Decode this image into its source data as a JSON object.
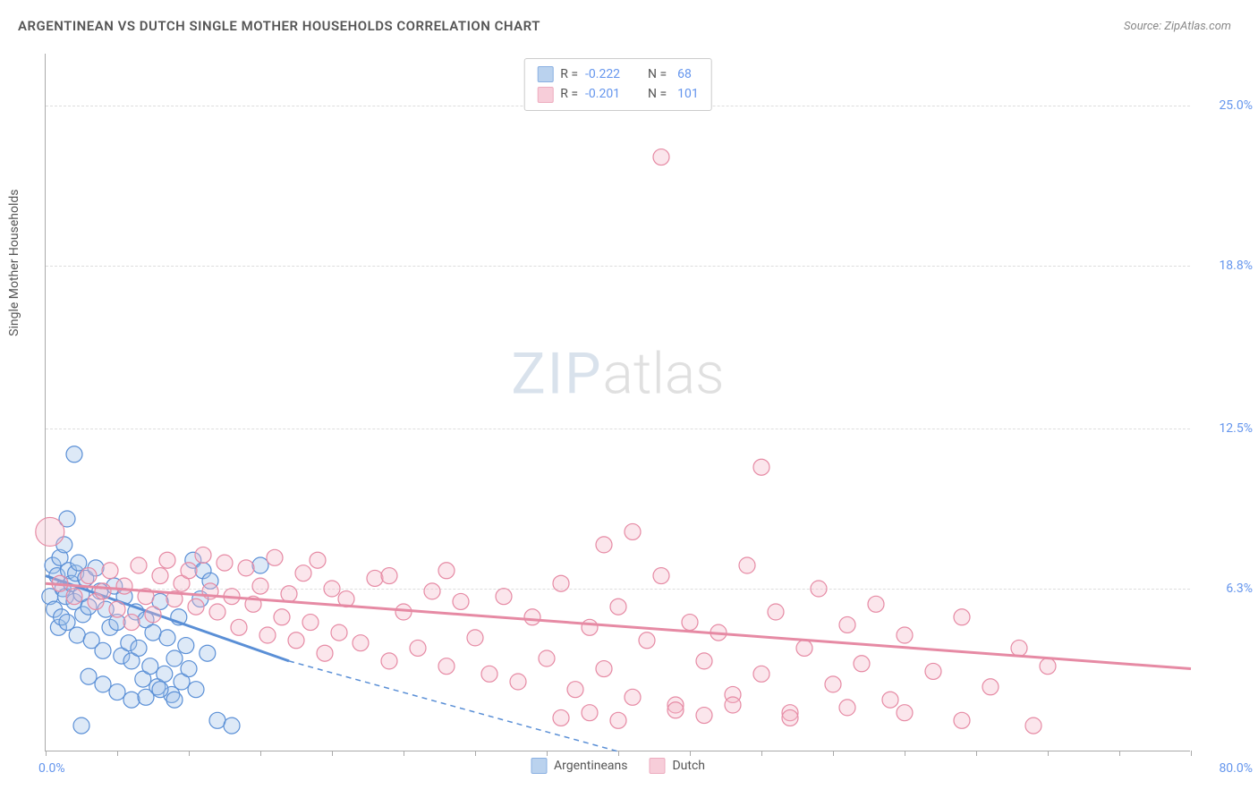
{
  "title": "ARGENTINEAN VS DUTCH SINGLE MOTHER HOUSEHOLDS CORRELATION CHART",
  "source": "Source: ZipAtlas.com",
  "watermark": {
    "part1": "ZIP",
    "part2": "atlas"
  },
  "y_axis_title": "Single Mother Households",
  "chart": {
    "type": "scatter",
    "background_color": "#ffffff",
    "grid_color": "#dddddd",
    "axis_color": "#aaaaaa",
    "xlim": [
      0,
      80
    ],
    "ylim": [
      0,
      27
    ],
    "x_origin_label": "0.0%",
    "x_max_label": "80.0%",
    "y_ticks": [
      {
        "value": 6.3,
        "label": "6.3%"
      },
      {
        "value": 12.5,
        "label": "12.5%"
      },
      {
        "value": 18.8,
        "label": "18.8%"
      },
      {
        "value": 25.0,
        "label": "25.0%"
      }
    ],
    "x_tick_step": 5,
    "marker_radius": 9,
    "marker_radius_large": 16,
    "fill_opacity": 0.35,
    "series": [
      {
        "key": "argentineans",
        "label": "Argentineans",
        "color_border": "#5a8fd6",
        "color_fill": "#9dc0e8",
        "r_value": "-0.222",
        "n_value": "68",
        "trend_solid": {
          "x1": 0,
          "y1": 6.8,
          "x2": 17,
          "y2": 3.5
        },
        "trend_dashed": {
          "x1": 17,
          "y1": 3.5,
          "x2": 40,
          "y2": 0
        },
        "trend_width": 3,
        "points": [
          [
            0.3,
            6.0
          ],
          [
            0.5,
            7.2
          ],
          [
            0.6,
            5.5
          ],
          [
            0.8,
            6.8
          ],
          [
            0.9,
            4.8
          ],
          [
            1.0,
            7.5
          ],
          [
            1.1,
            5.2
          ],
          [
            1.2,
            6.3
          ],
          [
            1.3,
            8.0
          ],
          [
            1.4,
            6.0
          ],
          [
            1.5,
            5.0
          ],
          [
            1.6,
            7.0
          ],
          [
            1.8,
            6.5
          ],
          [
            2.0,
            5.8
          ],
          [
            2.1,
            6.9
          ],
          [
            2.2,
            4.5
          ],
          [
            2.3,
            7.3
          ],
          [
            2.5,
            6.1
          ],
          [
            2.6,
            5.3
          ],
          [
            2.8,
            6.7
          ],
          [
            3.0,
            5.6
          ],
          [
            3.2,
            4.3
          ],
          [
            3.5,
            7.1
          ],
          [
            3.8,
            6.2
          ],
          [
            4.0,
            3.9
          ],
          [
            4.2,
            5.5
          ],
          [
            4.5,
            4.8
          ],
          [
            4.8,
            6.4
          ],
          [
            5.0,
            5.0
          ],
          [
            5.3,
            3.7
          ],
          [
            5.5,
            6.0
          ],
          [
            5.8,
            4.2
          ],
          [
            6.0,
            3.5
          ],
          [
            6.3,
            5.4
          ],
          [
            6.5,
            4.0
          ],
          [
            6.8,
            2.8
          ],
          [
            7.0,
            5.1
          ],
          [
            7.3,
            3.3
          ],
          [
            7.5,
            4.6
          ],
          [
            7.8,
            2.5
          ],
          [
            8.0,
            5.8
          ],
          [
            8.3,
            3.0
          ],
          [
            8.5,
            4.4
          ],
          [
            8.8,
            2.2
          ],
          [
            9.0,
            3.6
          ],
          [
            9.3,
            5.2
          ],
          [
            9.5,
            2.7
          ],
          [
            9.8,
            4.1
          ],
          [
            10.0,
            3.2
          ],
          [
            10.3,
            7.4
          ],
          [
            10.5,
            2.4
          ],
          [
            10.8,
            5.9
          ],
          [
            11.0,
            7.0
          ],
          [
            11.3,
            3.8
          ],
          [
            11.5,
            6.6
          ],
          [
            12.0,
            1.2
          ],
          [
            2.0,
            11.5
          ],
          [
            1.5,
            9.0
          ],
          [
            3.0,
            2.9
          ],
          [
            4.0,
            2.6
          ],
          [
            5.0,
            2.3
          ],
          [
            6.0,
            2.0
          ],
          [
            7.0,
            2.1
          ],
          [
            8.0,
            2.4
          ],
          [
            9.0,
            2.0
          ],
          [
            2.5,
            1.0
          ],
          [
            13.0,
            1.0
          ],
          [
            15.0,
            7.2
          ]
        ]
      },
      {
        "key": "dutch",
        "label": "Dutch",
        "color_border": "#e68aa4",
        "color_fill": "#f4b8c9",
        "r_value": "-0.201",
        "n_value": "101",
        "trend_solid": {
          "x1": 0,
          "y1": 6.5,
          "x2": 80,
          "y2": 3.2
        },
        "trend_dashed": null,
        "trend_width": 3,
        "points": [
          [
            0.3,
            8.5,
            "large"
          ],
          [
            1.0,
            6.5
          ],
          [
            2.0,
            6.0
          ],
          [
            3.0,
            6.8
          ],
          [
            3.5,
            5.8
          ],
          [
            4.0,
            6.2
          ],
          [
            4.5,
            7.0
          ],
          [
            5.0,
            5.5
          ],
          [
            5.5,
            6.4
          ],
          [
            6.0,
            5.0
          ],
          [
            6.5,
            7.2
          ],
          [
            7.0,
            6.0
          ],
          [
            7.5,
            5.3
          ],
          [
            8.0,
            6.8
          ],
          [
            8.5,
            7.4
          ],
          [
            9.0,
            5.9
          ],
          [
            9.5,
            6.5
          ],
          [
            10.0,
            7.0
          ],
          [
            10.5,
            5.6
          ],
          [
            11.0,
            7.6
          ],
          [
            11.5,
            6.2
          ],
          [
            12.0,
            5.4
          ],
          [
            12.5,
            7.3
          ],
          [
            13.0,
            6.0
          ],
          [
            13.5,
            4.8
          ],
          [
            14.0,
            7.1
          ],
          [
            14.5,
            5.7
          ],
          [
            15.0,
            6.4
          ],
          [
            15.5,
            4.5
          ],
          [
            16.0,
            7.5
          ],
          [
            16.5,
            5.2
          ],
          [
            17.0,
            6.1
          ],
          [
            17.5,
            4.3
          ],
          [
            18.0,
            6.9
          ],
          [
            18.5,
            5.0
          ],
          [
            19.0,
            7.4
          ],
          [
            19.5,
            3.8
          ],
          [
            20.0,
            6.3
          ],
          [
            20.5,
            4.6
          ],
          [
            21.0,
            5.9
          ],
          [
            22.0,
            4.2
          ],
          [
            23.0,
            6.7
          ],
          [
            24.0,
            3.5
          ],
          [
            25.0,
            5.4
          ],
          [
            26.0,
            4.0
          ],
          [
            27.0,
            6.2
          ],
          [
            28.0,
            3.3
          ],
          [
            29.0,
            5.8
          ],
          [
            30.0,
            4.4
          ],
          [
            31.0,
            3.0
          ],
          [
            32.0,
            6.0
          ],
          [
            33.0,
            2.7
          ],
          [
            34.0,
            5.2
          ],
          [
            35.0,
            3.6
          ],
          [
            36.0,
            6.5
          ],
          [
            37.0,
            2.4
          ],
          [
            38.0,
            4.8
          ],
          [
            39.0,
            3.2
          ],
          [
            40.0,
            5.6
          ],
          [
            41.0,
            2.1
          ],
          [
            42.0,
            4.3
          ],
          [
            43.0,
            6.8
          ],
          [
            44.0,
            1.8
          ],
          [
            45.0,
            5.0
          ],
          [
            46.0,
            3.5
          ],
          [
            47.0,
            4.6
          ],
          [
            48.0,
            2.2
          ],
          [
            49.0,
            7.2
          ],
          [
            50.0,
            3.0
          ],
          [
            51.0,
            5.4
          ],
          [
            52.0,
            1.5
          ],
          [
            53.0,
            4.0
          ],
          [
            54.0,
            6.3
          ],
          [
            55.0,
            2.6
          ],
          [
            56.0,
            4.9
          ],
          [
            57.0,
            3.4
          ],
          [
            58.0,
            5.7
          ],
          [
            59.0,
            2.0
          ],
          [
            60.0,
            4.5
          ],
          [
            62.0,
            3.1
          ],
          [
            64.0,
            5.2
          ],
          [
            66.0,
            2.5
          ],
          [
            68.0,
            4.0
          ],
          [
            70.0,
            3.3
          ],
          [
            41.0,
            8.5
          ],
          [
            39.0,
            8.0
          ],
          [
            50.0,
            11.0
          ],
          [
            43.0,
            23.0
          ],
          [
            36.0,
            1.3
          ],
          [
            38.0,
            1.5
          ],
          [
            40.0,
            1.2
          ],
          [
            44.0,
            1.6
          ],
          [
            46.0,
            1.4
          ],
          [
            48.0,
            1.8
          ],
          [
            52.0,
            1.3
          ],
          [
            56.0,
            1.7
          ],
          [
            60.0,
            1.5
          ],
          [
            64.0,
            1.2
          ],
          [
            69.0,
            1.0
          ],
          [
            28.0,
            7.0
          ],
          [
            24.0,
            6.8
          ]
        ]
      }
    ]
  },
  "legend_bottom": [
    {
      "key": "argentineans",
      "label": "Argentineans"
    },
    {
      "key": "dutch",
      "label": "Dutch"
    }
  ]
}
